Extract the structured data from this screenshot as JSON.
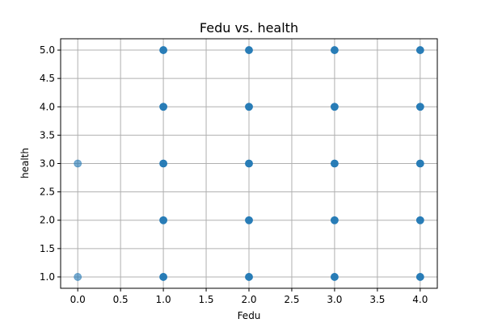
{
  "chart_data": {
    "type": "scatter",
    "title": "Fedu vs. health",
    "xlabel": "Fedu",
    "ylabel": "health",
    "xlim": [
      -0.2,
      4.2
    ],
    "ylim": [
      0.8,
      5.2
    ],
    "xticks": [
      0.0,
      0.5,
      1.0,
      1.5,
      2.0,
      2.5,
      3.0,
      3.5,
      4.0
    ],
    "xtick_labels": [
      "0.0",
      "0.5",
      "1.0",
      "1.5",
      "2.0",
      "2.5",
      "3.0",
      "3.5",
      "4.0"
    ],
    "yticks": [
      1.0,
      1.5,
      2.0,
      2.5,
      3.0,
      3.5,
      4.0,
      4.5,
      5.0
    ],
    "ytick_labels": [
      "1.0",
      "1.5",
      "2.0",
      "2.5",
      "3.0",
      "3.5",
      "4.0",
      "4.5",
      "5.0"
    ],
    "grid": true,
    "marker_color": "#1f77b4",
    "points": [
      {
        "x": 0,
        "y": 1
      },
      {
        "x": 0,
        "y": 3
      },
      {
        "x": 1,
        "y": 1
      },
      {
        "x": 1,
        "y": 2
      },
      {
        "x": 1,
        "y": 3
      },
      {
        "x": 1,
        "y": 4
      },
      {
        "x": 1,
        "y": 5
      },
      {
        "x": 2,
        "y": 1
      },
      {
        "x": 2,
        "y": 2
      },
      {
        "x": 2,
        "y": 3
      },
      {
        "x": 2,
        "y": 4
      },
      {
        "x": 2,
        "y": 5
      },
      {
        "x": 3,
        "y": 1
      },
      {
        "x": 3,
        "y": 2
      },
      {
        "x": 3,
        "y": 3
      },
      {
        "x": 3,
        "y": 4
      },
      {
        "x": 3,
        "y": 5
      },
      {
        "x": 4,
        "y": 1
      },
      {
        "x": 4,
        "y": 2
      },
      {
        "x": 4,
        "y": 3
      },
      {
        "x": 4,
        "y": 4
      },
      {
        "x": 4,
        "y": 5
      }
    ]
  }
}
